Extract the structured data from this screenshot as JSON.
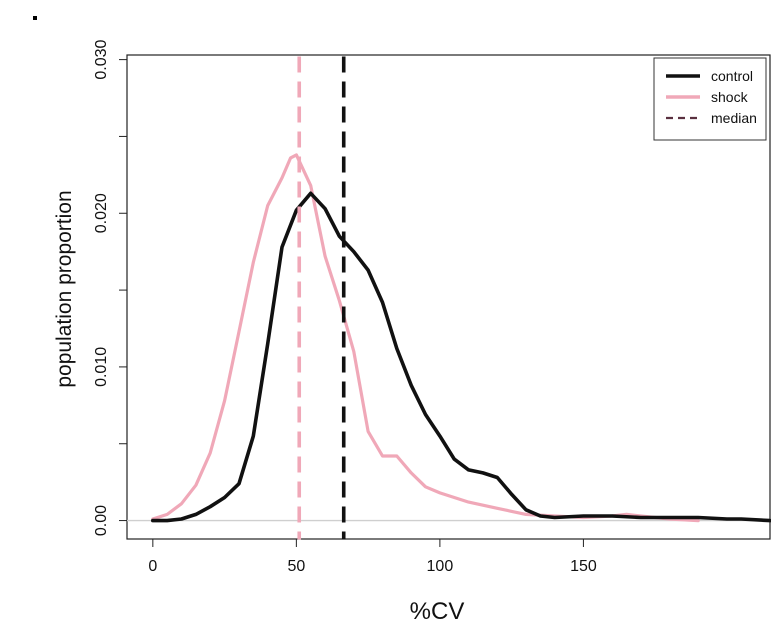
{
  "chart_data": {
    "type": "line",
    "xlabel": "%CV",
    "ylabel": "population proportion",
    "xlim": [
      -9,
      215
    ],
    "ylim": [
      -0.0012,
      0.0303
    ],
    "x_ticks": [
      0,
      50,
      100,
      150
    ],
    "y_ticks": [
      0.0,
      0.01,
      0.02,
      0.03
    ],
    "y_tick_labels": [
      "0.00",
      "0.010",
      "0.020",
      "0.030"
    ],
    "grid": false,
    "legend_position": "top-right",
    "legend": [
      {
        "label": "control",
        "style": "solid",
        "color": "#111111"
      },
      {
        "label": "shock",
        "style": "solid",
        "color": "#f0a8b8"
      },
      {
        "label": "median",
        "style": "dashed",
        "color": "#5a3040"
      }
    ],
    "series": [
      {
        "name": "control",
        "color": "#111111",
        "x": [
          0,
          5,
          10,
          15,
          20,
          25,
          30,
          35,
          40,
          45,
          50,
          55,
          60,
          65,
          70,
          75,
          80,
          85,
          90,
          95,
          100,
          105,
          110,
          115,
          120,
          125,
          130,
          135,
          140,
          150,
          160,
          170,
          180,
          190,
          200,
          205,
          215
        ],
        "y": [
          0.0,
          0.0,
          0.0001,
          0.0004,
          0.0009,
          0.0015,
          0.0024,
          0.0055,
          0.0115,
          0.0178,
          0.0202,
          0.0213,
          0.0203,
          0.0185,
          0.0175,
          0.0163,
          0.0142,
          0.0112,
          0.0088,
          0.0069,
          0.0055,
          0.004,
          0.0033,
          0.0031,
          0.0028,
          0.0017,
          0.0007,
          0.0003,
          0.0002,
          0.0003,
          0.0003,
          0.0002,
          0.0002,
          0.0002,
          0.0001,
          0.0001,
          0.0
        ]
      },
      {
        "name": "shock",
        "color": "#f0a8b8",
        "x": [
          0,
          5,
          10,
          15,
          20,
          25,
          30,
          35,
          40,
          45,
          48,
          50,
          55,
          60,
          65,
          70,
          75,
          80,
          85,
          90,
          95,
          100,
          110,
          120,
          130,
          140,
          150,
          160,
          165,
          170,
          180,
          190
        ],
        "y": [
          0.0001,
          0.0004,
          0.0011,
          0.0023,
          0.0044,
          0.0078,
          0.0123,
          0.0168,
          0.0205,
          0.0223,
          0.0236,
          0.0238,
          0.0218,
          0.0172,
          0.0143,
          0.011,
          0.0058,
          0.0042,
          0.0042,
          0.0031,
          0.0022,
          0.0018,
          0.0012,
          0.0008,
          0.0004,
          0.0003,
          0.0002,
          0.0003,
          0.0004,
          0.0003,
          0.0001,
          0.0
        ]
      }
    ],
    "median_lines": [
      {
        "label": "median",
        "series": "control",
        "x": 66.5,
        "color": "#111111"
      },
      {
        "label": "median",
        "series": "shock",
        "x": 51.0,
        "color": "#f0a8b8"
      }
    ]
  }
}
